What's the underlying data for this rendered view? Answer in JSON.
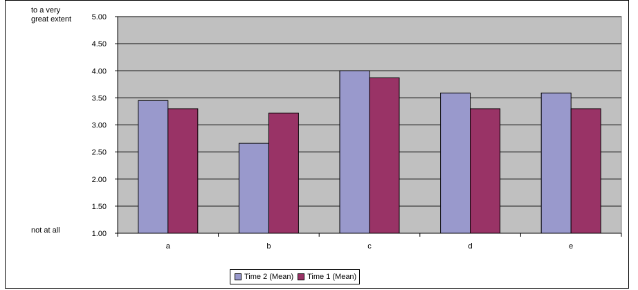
{
  "chart_data": {
    "type": "bar",
    "categories": [
      "a",
      "b",
      "c",
      "d",
      "e"
    ],
    "series": [
      {
        "name": "Time 2 (Mean)",
        "values": [
          3.45,
          2.66,
          4.0,
          3.59,
          3.59
        ],
        "color": "#9999cc"
      },
      {
        "name": "Time 1 (Mean)",
        "values": [
          3.3,
          3.22,
          3.87,
          3.3,
          3.3
        ],
        "color": "#993366"
      }
    ],
    "ylim": [
      1.0,
      5.0
    ],
    "yticks": [
      "1.00",
      "1.50",
      "2.00",
      "2.50",
      "3.00",
      "3.50",
      "4.00",
      "4.50",
      "5.00"
    ],
    "y_top_note": [
      "to a very",
      "great extent"
    ],
    "y_bottom_note": "not at all",
    "grid": true,
    "plot_background": "#c0c0c0",
    "legend_position": "bottom"
  }
}
